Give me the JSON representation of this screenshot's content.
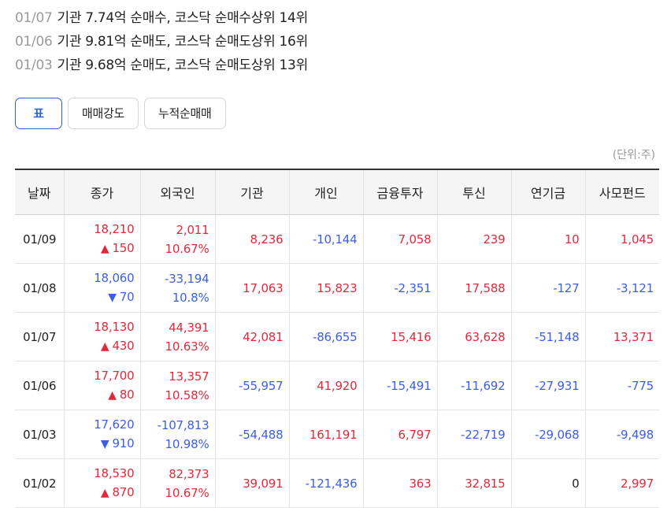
{
  "headlines": [
    {
      "date": "01/07",
      "text": "기관 7.74억 순매수, 코스닥 순매수상위 14위"
    },
    {
      "date": "01/06",
      "text": "기관 9.81억 순매도, 코스닥 순매도상위 16위"
    },
    {
      "date": "01/03",
      "text": "기관 9.68억 순매도, 코스닥 순매도상위 13위"
    }
  ],
  "tabs": [
    {
      "label": "표",
      "active": true
    },
    {
      "label": "매매강도",
      "active": false
    },
    {
      "label": "누적순매매",
      "active": false
    }
  ],
  "unit_label": "(단위:주)",
  "table": {
    "headers": [
      "날짜",
      "종가",
      "외국인",
      "기관",
      "개인",
      "금융투자",
      "투신",
      "연기금",
      "사모펀드"
    ],
    "rows": [
      {
        "date": "01/09",
        "close": "18,210",
        "change_dir": "up",
        "change_symbol": "▲",
        "change": "150",
        "foreign": "2,011",
        "foreign_ratio": "10.67%",
        "foreign_dir": "up",
        "inst": "8,236",
        "retail": "-10,144",
        "fininv": "7,058",
        "trust": "239",
        "pension": "10",
        "pe": "1,045"
      },
      {
        "date": "01/08",
        "close": "18,060",
        "change_dir": "down",
        "change_symbol": "▼",
        "change": "70",
        "foreign": "-33,194",
        "foreign_ratio": "10.8%",
        "foreign_dir": "down",
        "inst": "17,063",
        "retail": "15,823",
        "fininv": "-2,351",
        "trust": "17,588",
        "pension": "-127",
        "pe": "-3,121"
      },
      {
        "date": "01/07",
        "close": "18,130",
        "change_dir": "up",
        "change_symbol": "▲",
        "change": "430",
        "foreign": "44,391",
        "foreign_ratio": "10.63%",
        "foreign_dir": "up",
        "inst": "42,081",
        "retail": "-86,655",
        "fininv": "15,416",
        "trust": "63,628",
        "pension": "-51,148",
        "pe": "13,371"
      },
      {
        "date": "01/06",
        "close": "17,700",
        "change_dir": "up",
        "change_symbol": "▲",
        "change": "80",
        "foreign": "13,357",
        "foreign_ratio": "10.58%",
        "foreign_dir": "up",
        "inst": "-55,957",
        "retail": "41,920",
        "fininv": "-15,491",
        "trust": "-11,692",
        "pension": "-27,931",
        "pe": "-775"
      },
      {
        "date": "01/03",
        "close": "17,620",
        "change_dir": "down",
        "change_symbol": "▼",
        "change": "910",
        "foreign": "-107,813",
        "foreign_ratio": "10.98%",
        "foreign_dir": "down",
        "inst": "-54,488",
        "retail": "161,191",
        "fininv": "6,797",
        "trust": "-22,719",
        "pension": "-29,068",
        "pe": "-9,498"
      },
      {
        "date": "01/02",
        "close": "18,530",
        "change_dir": "up",
        "change_symbol": "▲",
        "change": "870",
        "foreign": "82,373",
        "foreign_ratio": "10.67%",
        "foreign_dir": "up",
        "inst": "39,091",
        "retail": "-121,436",
        "fininv": "363",
        "trust": "32,815",
        "pension": "0",
        "pe": "2,997"
      }
    ]
  },
  "colors": {
    "up": "#e4283b",
    "down": "#3c5ee6",
    "accent": "#2f61d5"
  }
}
